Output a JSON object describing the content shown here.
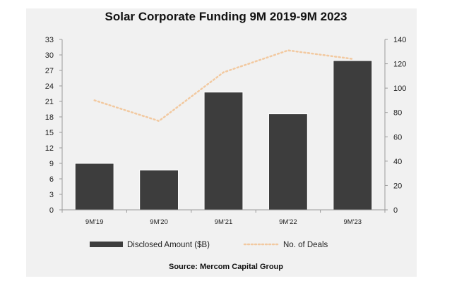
{
  "chart_data": {
    "type": "bar",
    "title": "Solar Corporate Funding 9M 2019-9M 2023",
    "categories": [
      "9M'19",
      "9M'20",
      "9M'21",
      "9M'22",
      "9M'23"
    ],
    "series": [
      {
        "name": "Disclosed Amount ($B)",
        "type": "bar",
        "axis": "left",
        "color": "#3d3d3d",
        "values": [
          9.0,
          7.7,
          22.8,
          18.6,
          28.9
        ]
      },
      {
        "name": "No. of Deals",
        "type": "line",
        "style": "dotted",
        "axis": "right",
        "color": "#f2c9a0",
        "values": [
          90,
          73,
          113,
          131,
          124
        ]
      }
    ],
    "y_left": {
      "label": "",
      "ylim": [
        0,
        33
      ],
      "ticks": [
        0,
        3,
        6,
        9,
        12,
        15,
        18,
        21,
        24,
        27,
        30,
        33
      ]
    },
    "y_right": {
      "label": "",
      "ylim": [
        0,
        140
      ],
      "ticks": [
        0,
        20,
        40,
        60,
        80,
        100,
        120,
        140
      ]
    },
    "xlabel": "",
    "grid": false,
    "legend": {
      "placement": "bottom",
      "entries": [
        "Disclosed Amount ($B)",
        "No. of Deals"
      ]
    },
    "source": "Source: Mercom Capital Group"
  }
}
